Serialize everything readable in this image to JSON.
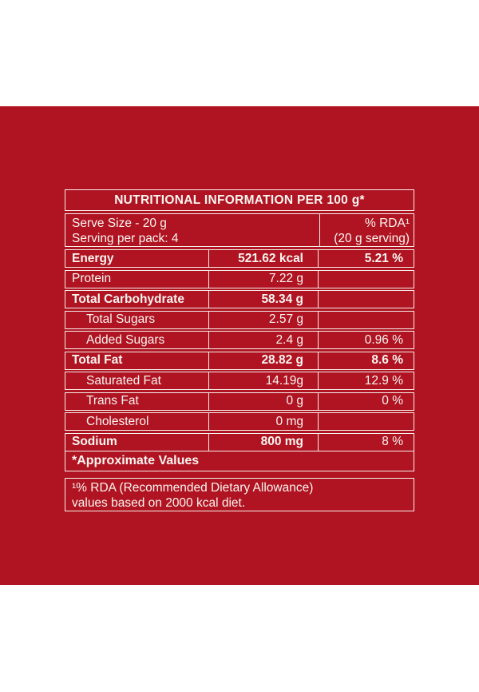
{
  "colors": {
    "page_background": "#ffffff",
    "panel_red": "#b01322",
    "border_white": "#f6f1ea",
    "text_white": "#faf6f0"
  },
  "label": {
    "title": "NUTRITIONAL INFORMATION PER 100 g*",
    "header": {
      "serve_size": "Serve Size - 20 g",
      "servings_per_pack": "Serving per pack: 4",
      "rda_line1": "% RDA¹",
      "rda_line2": "(20 g serving)"
    },
    "rows": [
      {
        "name": "Energy",
        "value": "521.62 kcal",
        "rda": "5.21 %",
        "bold": true,
        "rda_bold": true,
        "indent": false
      },
      {
        "name": "Protein",
        "value": "7.22 g",
        "rda": "",
        "bold": false,
        "rda_bold": false,
        "indent": false
      },
      {
        "name": "Total Carbohydrate",
        "value": "58.34 g",
        "rda": "",
        "bold": true,
        "rda_bold": false,
        "indent": false
      },
      {
        "name": "Total Sugars",
        "value": "2.57 g",
        "rda": "",
        "bold": false,
        "rda_bold": false,
        "indent": true
      },
      {
        "name": "Added Sugars",
        "value": "2.4 g",
        "rda": "0.96 %",
        "bold": false,
        "rda_bold": false,
        "indent": true
      },
      {
        "name": "Total Fat",
        "value": "28.82 g",
        "rda": "8.6 %",
        "bold": true,
        "rda_bold": true,
        "indent": false
      },
      {
        "name": "Saturated Fat",
        "value": "14.19g",
        "rda": "12.9 %",
        "bold": false,
        "rda_bold": false,
        "indent": true
      },
      {
        "name": "Trans Fat",
        "value": "0 g",
        "rda": "0 %",
        "bold": false,
        "rda_bold": false,
        "indent": true
      },
      {
        "name": "Cholesterol",
        "value": "0 mg",
        "rda": "",
        "bold": false,
        "rda_bold": false,
        "indent": true
      },
      {
        "name": "Sodium",
        "value": "800 mg",
        "rda": "8 %",
        "bold": true,
        "rda_bold": false,
        "indent": false
      }
    ],
    "approx_note": "*Approximate Values",
    "footnote_line1": "¹% RDA (Recommended Dietary Allowance)",
    "footnote_line2": "values based on 2000 kcal diet."
  }
}
